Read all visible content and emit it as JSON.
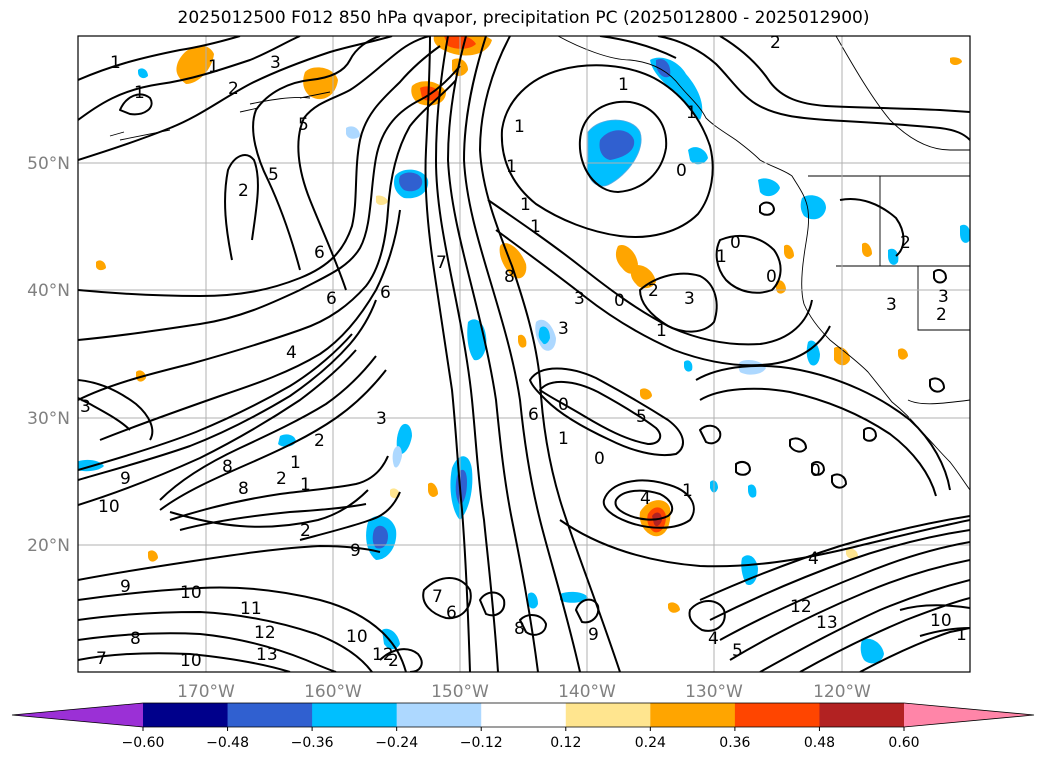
{
  "title": "2025012500 F012 850 hPa qvapor, precipitation PC (2025012800 - 2025012900)",
  "lat_labels": [
    "50°N",
    "40°N",
    "30°N",
    "20°N"
  ],
  "lon_labels": [
    "170°W",
    "160°W",
    "150°W",
    "140°W",
    "130°W",
    "120°W"
  ],
  "colorbar": {
    "colors": [
      "#9b30d6",
      "#00008b",
      "#3060d0",
      "#00bfff",
      "#add8ff",
      "#ffffff",
      "#ffe58f",
      "#ffa500",
      "#ff4500",
      "#b22222",
      "#ff85a8"
    ],
    "tick_labels": [
      "−0.60",
      "−0.48",
      "−0.36",
      "−0.24",
      "−0.12",
      "0.12",
      "0.24",
      "0.36",
      "0.48",
      "0.60"
    ]
  },
  "contour_labels": [
    "1",
    "2",
    "3",
    "4",
    "5",
    "6",
    "7",
    "8",
    "9",
    "10",
    "11",
    "12",
    "13"
  ]
}
